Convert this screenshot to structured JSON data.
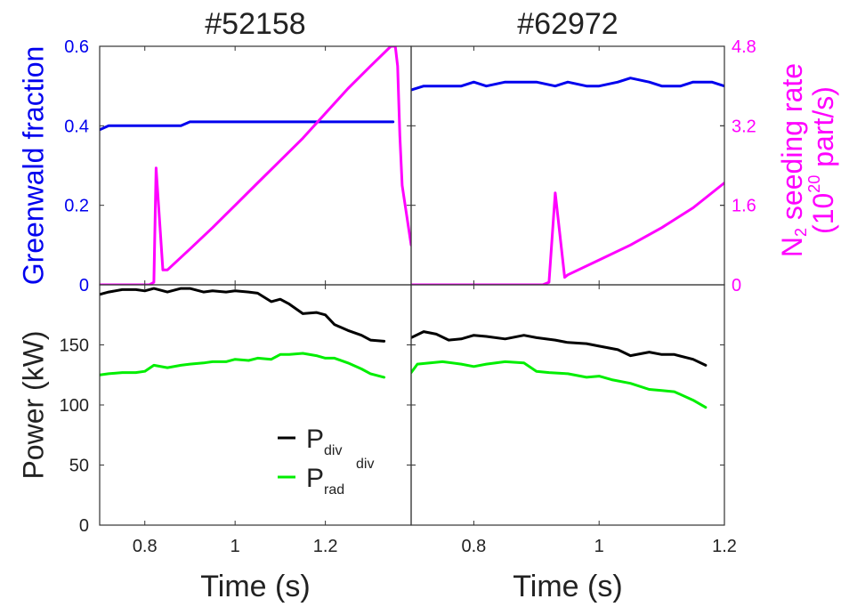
{
  "figure": {
    "colors": {
      "greenwald": "#0000ee",
      "n2": "#ff00ff",
      "pdiv": "#000000",
      "prad": "#00ee00",
      "axis": "#333333",
      "text": "#222222"
    }
  },
  "chart_data": [
    {
      "id": "top-left",
      "type": "line",
      "title": "#52158",
      "ylabel": "Greenwald fraction",
      "xlim": [
        0.7,
        1.39
      ],
      "ylim": [
        0,
        0.6
      ],
      "yticks": [
        "0",
        "0.2",
        "0.4",
        "0.6"
      ],
      "y2lim": [
        0,
        4.8
      ],
      "series": [
        {
          "role": "greenwald",
          "axis": "left",
          "x": [
            0.7,
            0.72,
            0.75,
            0.78,
            0.8,
            0.82,
            0.85,
            0.88,
            0.9,
            0.93,
            0.95,
            0.98,
            1.0,
            1.03,
            1.05,
            1.08,
            1.1,
            1.13,
            1.15,
            1.2,
            1.25,
            1.3,
            1.35
          ],
          "y": [
            0.39,
            0.4,
            0.4,
            0.4,
            0.4,
            0.4,
            0.4,
            0.4,
            0.41,
            0.41,
            0.41,
            0.41,
            0.41,
            0.41,
            0.41,
            0.41,
            0.41,
            0.41,
            0.41,
            0.41,
            0.41,
            0.41,
            0.41
          ]
        },
        {
          "role": "n2",
          "axis": "right",
          "x": [
            0.7,
            0.81,
            0.82,
            0.825,
            0.84,
            0.85,
            0.9,
            0.95,
            1.0,
            1.05,
            1.1,
            1.15,
            1.2,
            1.25,
            1.3,
            1.345,
            1.355,
            1.36,
            1.365,
            1.37,
            1.39
          ],
          "y": [
            0,
            0,
            0.05,
            2.35,
            0.3,
            0.3,
            0.72,
            1.15,
            1.6,
            2.05,
            2.5,
            2.95,
            3.45,
            3.95,
            4.4,
            4.8,
            4.8,
            4.4,
            3.0,
            2.0,
            0.8
          ]
        }
      ]
    },
    {
      "id": "top-right",
      "type": "line",
      "title": "#62972",
      "xlim": [
        0.7,
        1.2
      ],
      "ylim": [
        0,
        0.6
      ],
      "y2label_main": "N",
      "y2label_sub": "2",
      "y2label_rest": " seeding rate",
      "y2label2_open": "(10",
      "y2label2_sup": "20",
      "y2label2_rest": " part/s)",
      "y2lim": [
        0,
        4.8
      ],
      "y2ticks": [
        "0",
        "1.6",
        "3.2",
        "4.8"
      ],
      "series": [
        {
          "role": "greenwald",
          "axis": "left",
          "x": [
            0.7,
            0.72,
            0.75,
            0.78,
            0.8,
            0.82,
            0.85,
            0.88,
            0.9,
            0.93,
            0.95,
            0.98,
            1.0,
            1.03,
            1.05,
            1.08,
            1.1,
            1.13,
            1.15,
            1.18,
            1.2
          ],
          "y": [
            0.49,
            0.5,
            0.5,
            0.5,
            0.51,
            0.5,
            0.51,
            0.51,
            0.51,
            0.5,
            0.51,
            0.5,
            0.5,
            0.51,
            0.52,
            0.51,
            0.5,
            0.5,
            0.51,
            0.51,
            0.5
          ]
        },
        {
          "role": "n2",
          "axis": "right",
          "x": [
            0.7,
            0.91,
            0.92,
            0.93,
            0.945,
            0.95,
            1.0,
            1.05,
            1.1,
            1.15,
            1.2
          ],
          "y": [
            0,
            0,
            0.05,
            1.85,
            0.15,
            0.2,
            0.5,
            0.8,
            1.15,
            1.55,
            2.05
          ]
        }
      ]
    },
    {
      "id": "bottom-left",
      "type": "line",
      "ylabel": "Power (kW)",
      "xlabel": "Time (s)",
      "xlim": [
        0.7,
        1.39
      ],
      "xticks": [
        "0.8",
        "1",
        "1.2"
      ],
      "ylim": [
        0,
        200
      ],
      "yticks": [
        "0",
        "50",
        "100",
        "150"
      ],
      "legend": {
        "placement": "lower-center",
        "items": [
          {
            "role": "pdiv",
            "label": "P",
            "sub": "div",
            "sup": ""
          },
          {
            "role": "prad",
            "label": "P",
            "sub": "rad",
            "sup": "div"
          }
        ]
      },
      "series": [
        {
          "role": "pdiv",
          "x": [
            0.7,
            0.72,
            0.75,
            0.78,
            0.8,
            0.82,
            0.85,
            0.88,
            0.9,
            0.93,
            0.95,
            0.98,
            1.0,
            1.03,
            1.05,
            1.08,
            1.1,
            1.12,
            1.15,
            1.18,
            1.2,
            1.22,
            1.25,
            1.28,
            1.3,
            1.33
          ],
          "y": [
            192,
            194,
            196,
            196,
            195,
            197,
            194,
            197,
            197,
            194,
            195,
            194,
            195,
            194,
            193,
            186,
            188,
            184,
            176,
            177,
            175,
            167,
            162,
            158,
            154,
            153
          ]
        },
        {
          "role": "prad",
          "x": [
            0.7,
            0.72,
            0.75,
            0.78,
            0.8,
            0.82,
            0.85,
            0.88,
            0.9,
            0.93,
            0.95,
            0.98,
            1.0,
            1.03,
            1.05,
            1.08,
            1.1,
            1.12,
            1.15,
            1.18,
            1.2,
            1.22,
            1.25,
            1.28,
            1.3,
            1.33
          ],
          "y": [
            125,
            126,
            127,
            127,
            128,
            133,
            131,
            133,
            134,
            135,
            136,
            136,
            138,
            137,
            139,
            138,
            142,
            142,
            143,
            141,
            139,
            139,
            135,
            130,
            126,
            123
          ]
        }
      ]
    },
    {
      "id": "bottom-right",
      "type": "line",
      "xlabel": "Time (s)",
      "xlim": [
        0.7,
        1.2
      ],
      "xticks": [
        "0.8",
        "1",
        "1.2"
      ],
      "ylim": [
        0,
        200
      ],
      "series": [
        {
          "role": "pdiv",
          "x": [
            0.7,
            0.72,
            0.74,
            0.76,
            0.78,
            0.8,
            0.82,
            0.85,
            0.88,
            0.9,
            0.93,
            0.95,
            0.98,
            1.0,
            1.03,
            1.05,
            1.08,
            1.1,
            1.12,
            1.15,
            1.17
          ],
          "y": [
            156,
            161,
            159,
            154,
            155,
            158,
            157,
            155,
            158,
            156,
            154,
            152,
            151,
            149,
            146,
            141,
            144,
            142,
            142,
            138,
            133
          ]
        },
        {
          "role": "prad",
          "x": [
            0.7,
            0.71,
            0.73,
            0.75,
            0.78,
            0.8,
            0.82,
            0.85,
            0.88,
            0.9,
            0.92,
            0.95,
            0.98,
            1.0,
            1.02,
            1.05,
            1.08,
            1.1,
            1.12,
            1.15,
            1.17
          ],
          "y": [
            127,
            134,
            135,
            136,
            134,
            132,
            134,
            136,
            135,
            128,
            127,
            126,
            123,
            124,
            121,
            118,
            113,
            112,
            111,
            104,
            98
          ]
        }
      ]
    }
  ]
}
